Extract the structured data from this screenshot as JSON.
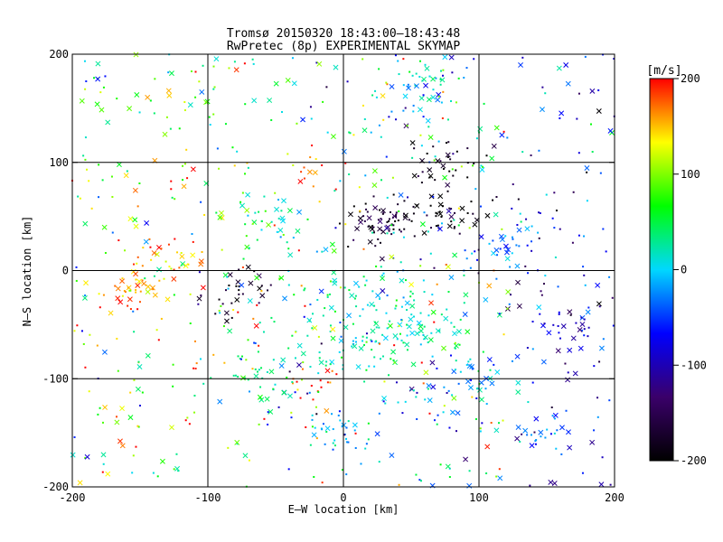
{
  "chart_data": {
    "type": "scatter",
    "title": "Tromsø 20150320 18:43:00–18:43:48",
    "subtitle": "RwPretec (8p) EXPERIMENTAL SKYMAP",
    "xlabel": "E–W location [km]",
    "ylabel": "N–S location [km]",
    "xlim": [
      -200,
      200
    ],
    "ylim": [
      -200,
      200
    ],
    "x_ticks": [
      -200,
      -100,
      0,
      100,
      200
    ],
    "y_ticks": [
      -200,
      -100,
      0,
      100,
      200
    ],
    "grid": true,
    "colorbar": {
      "label": "[m/s]",
      "range": [
        -200,
        200
      ],
      "ticks": [
        -200,
        -100,
        0,
        100,
        200
      ],
      "colors": [
        "#000000",
        "#3a006a",
        "#0000ff",
        "#00d8ff",
        "#00ff00",
        "#ffff00",
        "#ff0000"
      ]
    },
    "clusters": [
      {
        "x": 30,
        "y": 48,
        "vel": -170,
        "n": 70
      },
      {
        "x": 80,
        "y": 52,
        "vel": -195,
        "n": 40
      },
      {
        "x": 75,
        "y": 100,
        "vel": -195,
        "n": 30
      },
      {
        "x": 60,
        "y": 175,
        "vel": 20,
        "n": 25
      },
      {
        "x": 55,
        "y": 155,
        "vel": -20,
        "n": 20
      },
      {
        "x": 25,
        "y": -50,
        "vel": 20,
        "n": 180
      },
      {
        "x": -20,
        "y": -100,
        "vel": 190,
        "n": 15
      },
      {
        "x": -25,
        "y": 95,
        "vel": 180,
        "n": 12
      },
      {
        "x": -160,
        "y": -20,
        "vel": 150,
        "n": 40
      },
      {
        "x": -80,
        "y": -20,
        "vel": -180,
        "n": 30
      },
      {
        "x": 170,
        "y": -50,
        "vel": -80,
        "n": 25
      },
      {
        "x": 100,
        "y": -100,
        "vel": -20,
        "n": 30
      },
      {
        "x": -130,
        "y": 10,
        "vel": 160,
        "n": 30
      },
      {
        "x": -50,
        "y": 50,
        "vel": 30,
        "n": 25
      },
      {
        "x": 120,
        "y": 20,
        "vel": -30,
        "n": 30
      },
      {
        "x": 0,
        "y": -150,
        "vel": -20,
        "n": 30
      },
      {
        "x": -60,
        "y": -100,
        "vel": 40,
        "n": 25
      },
      {
        "x": 150,
        "y": -150,
        "vel": -30,
        "n": 25
      }
    ],
    "background_points": 700,
    "background_vel_mean": 30,
    "background_vel_spread": 170
  }
}
